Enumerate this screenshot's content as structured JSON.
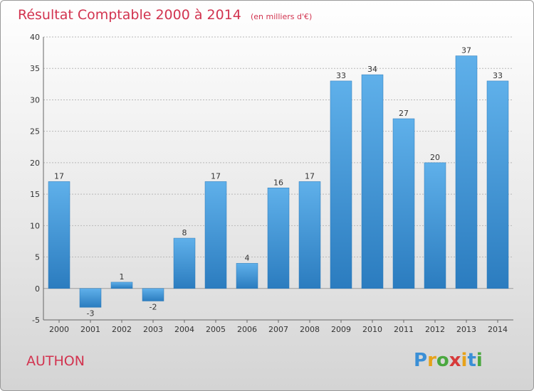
{
  "chart_data": {
    "type": "bar",
    "title": "Résultat Comptable 2000 à 2014",
    "subtitle": "(en milliers d'€)",
    "xlabel": "",
    "ylabel": "",
    "categories": [
      "2000",
      "2001",
      "2002",
      "2003",
      "2004",
      "2005",
      "2006",
      "2007",
      "2008",
      "2009",
      "2010",
      "2011",
      "2012",
      "2013",
      "2014"
    ],
    "values": [
      17,
      -3,
      1,
      -2,
      8,
      17,
      4,
      16,
      17,
      33,
      34,
      27,
      20,
      37,
      33
    ],
    "ylim": [
      -5,
      40
    ],
    "yticks": [
      -5,
      0,
      5,
      10,
      15,
      20,
      25,
      30,
      35,
      40
    ],
    "grid": true,
    "legend": "none",
    "colors": {
      "bar_top": "#5fb0ea",
      "bar_bottom": "#2b7cbf",
      "title": "#d2334f"
    }
  },
  "commune": "AUTHON",
  "logo": {
    "letters": [
      "P",
      "r",
      "o",
      "x",
      "i",
      "t",
      "i"
    ],
    "colors": [
      "#3a8fd6",
      "#e7a21a",
      "#4aa83f",
      "#d73a3a",
      "#e7a21a",
      "#3a8fd6",
      "#4aa83f"
    ]
  }
}
